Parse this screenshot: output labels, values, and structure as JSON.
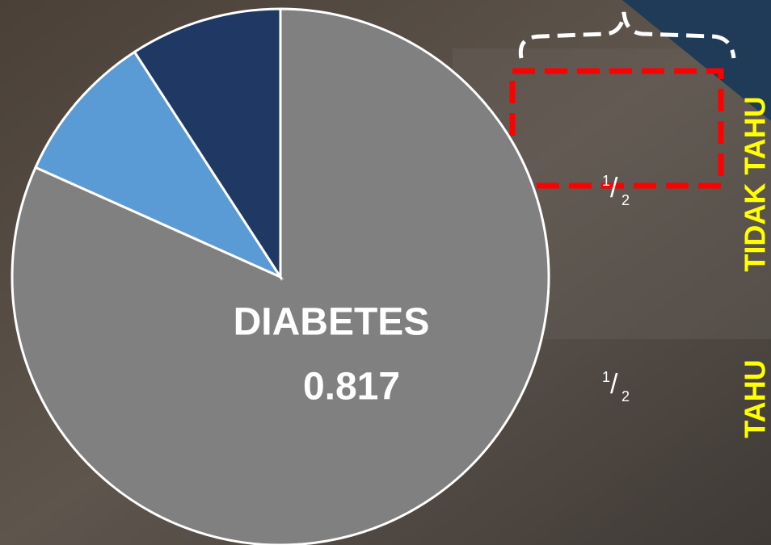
{
  "chart_data": {
    "type": "pie",
    "categories": [
      "DIABETES",
      null,
      null
    ],
    "values": [
      0.817,
      0.0915,
      0.0915
    ],
    "colors": [
      "#808080",
      "#5b9bd5",
      "#1f3864"
    ]
  },
  "annotations": {
    "fractions": [
      {
        "numerator": "1",
        "slash": "/",
        "denominator": "2"
      },
      {
        "numerator": "1",
        "slash": "/",
        "denominator": "2"
      }
    ],
    "vertical_labels": [
      "TIDAK TAHU",
      "TAHU"
    ]
  }
}
